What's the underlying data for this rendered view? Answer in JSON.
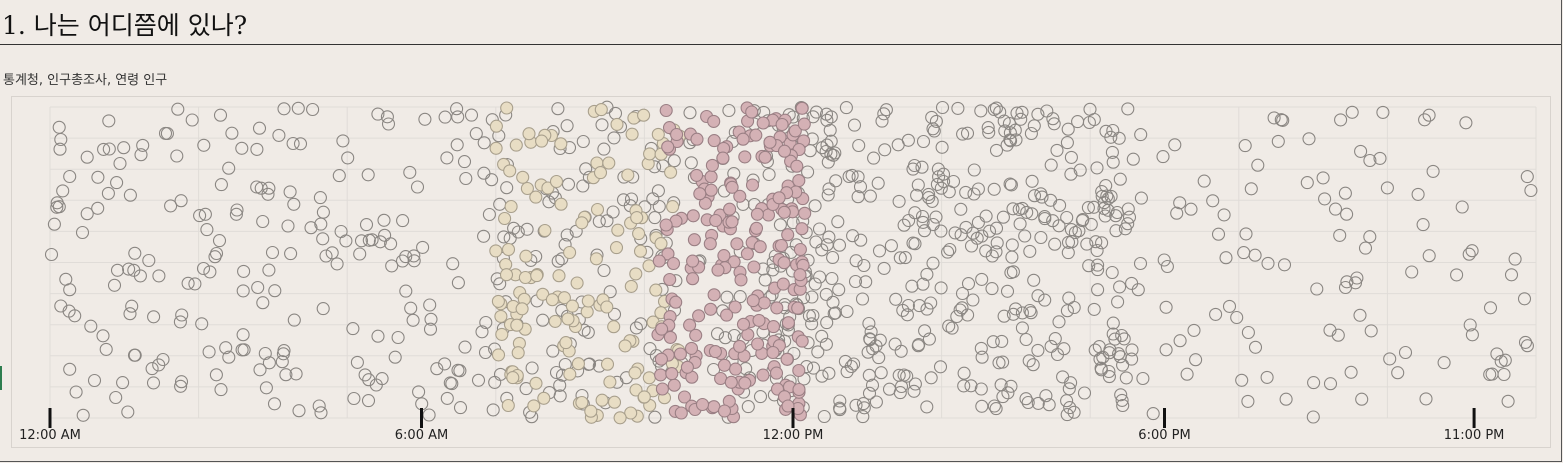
{
  "page": {
    "title": "1. 나는 어디쯤에 있나?",
    "source": "통계청, 인구총조사, 연령 인구"
  },
  "chart_data": {
    "type": "scatter",
    "title": "1. 나는 어디쯤에 있나?",
    "subtitle": "통계청, 인구총조사, 연령 인구",
    "x_axis": {
      "unit": "time of day (hours)",
      "range": [
        0,
        24
      ],
      "ticks": [
        {
          "value": 0,
          "label": "12:00 AM"
        },
        {
          "value": 6,
          "label": "6:00 AM"
        },
        {
          "value": 12,
          "label": "12:00 PM"
        },
        {
          "value": 18,
          "label": "6:00 PM"
        },
        {
          "value": 23,
          "label": "11:00 PM"
        }
      ]
    },
    "y_axis": {
      "type": "jitter",
      "range": [
        0,
        1
      ],
      "labels": "none"
    },
    "grid": true,
    "legend": "none",
    "colors": {
      "background": "#f0ebe6",
      "default_outline": "#8a8682",
      "highlight_beige_fill": "#e8ddc4",
      "highlight_beige_outline": "#a89f8c",
      "highlight_pink_fill": "#d4b1b5",
      "highlight_pink_outline": "#9a7f84",
      "grid": "#e0dcd8"
    },
    "series": [
      {
        "key": "beige",
        "x_range": [
          7.2,
          10.2
        ],
        "count": 150,
        "style": "beige"
      },
      {
        "key": "pink",
        "x_range": [
          9.8,
          12.2
        ],
        "count": 220,
        "style": "pink"
      },
      {
        "key": "base_morning",
        "x_range": [
          0,
          12.3
        ],
        "count": 400,
        "style": "outline"
      },
      {
        "key": "base_afternoon",
        "x_range": [
          11.5,
          17.5
        ],
        "count": 450,
        "style": "outline"
      },
      {
        "key": "base_evening",
        "x_range": [
          17.5,
          24
        ],
        "count": 110,
        "style": "outline"
      }
    ]
  }
}
